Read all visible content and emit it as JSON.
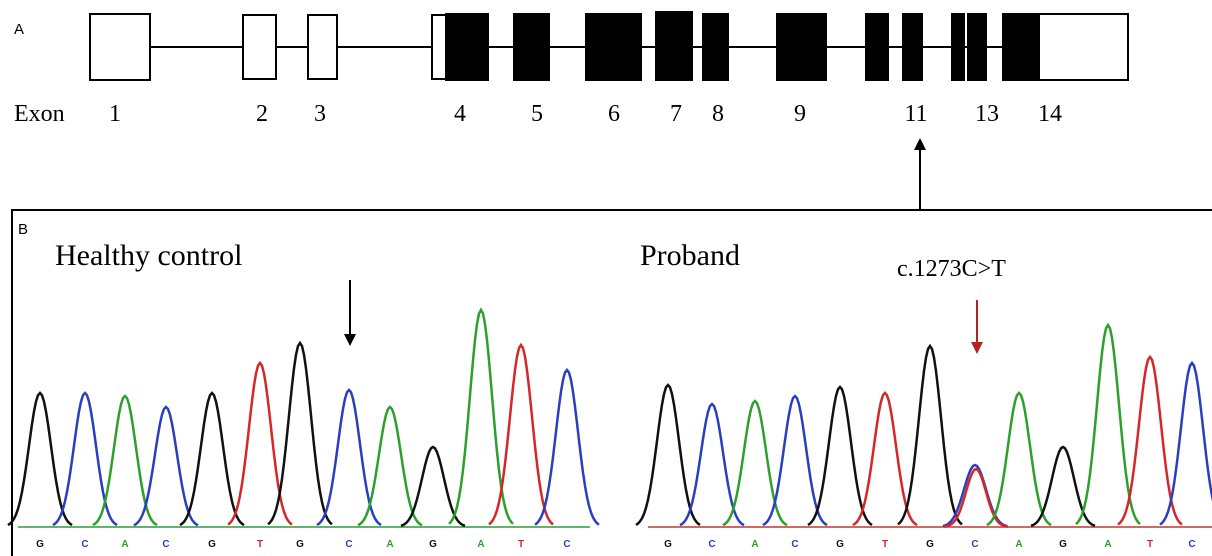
{
  "panel_a": {
    "label": "A",
    "exon_label": "Exon",
    "exons": [
      "1",
      "2",
      "3",
      "4",
      "5",
      "6",
      "7",
      "8",
      "9",
      "11",
      "13",
      "14"
    ]
  },
  "panel_b": {
    "label": "B",
    "control": {
      "title": "Healthy control",
      "bases": [
        "G",
        "C",
        "A",
        "C",
        "G",
        "T",
        "G",
        "C",
        "A",
        "G",
        "A",
        "T",
        "C"
      ]
    },
    "proband": {
      "title": "Proband",
      "mutation": "c.1273C>T",
      "bases": [
        "G",
        "C",
        "A",
        "C",
        "G",
        "T",
        "G",
        "C",
        "A",
        "G",
        "A",
        "T",
        "C"
      ]
    }
  }
}
